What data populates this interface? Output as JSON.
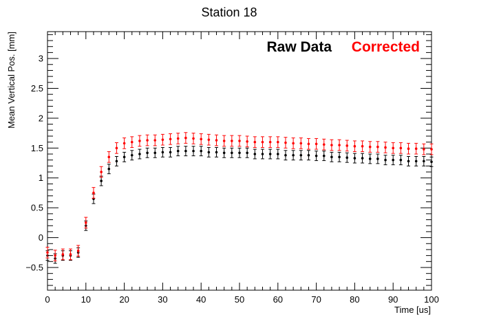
{
  "chart_data": {
    "type": "scatter",
    "title": "Station 18",
    "xlabel": "Time [us]",
    "ylabel": "Mean Vertical Pos. [mm]",
    "xlim": [
      0,
      100
    ],
    "ylim": [
      -0.88,
      3.45
    ],
    "x_ticks": [
      0,
      10,
      20,
      30,
      40,
      50,
      60,
      70,
      80,
      90,
      100
    ],
    "y_ticks": [
      -0.5,
      0,
      0.5,
      1,
      1.5,
      2,
      2.5,
      3
    ],
    "y_tick_labels": [
      "−0.5",
      "0",
      "0.5",
      "1",
      "1.5",
      "2",
      "2.5",
      "3"
    ],
    "grid": false,
    "legend_placement": "top-right",
    "error_bars": true,
    "series": [
      {
        "name": "Raw Data",
        "color": "#000000",
        "x": [
          0,
          2,
          4,
          6,
          8,
          10,
          12,
          14,
          16,
          18,
          20,
          22,
          24,
          26,
          28,
          30,
          32,
          34,
          36,
          38,
          40,
          42,
          44,
          46,
          48,
          50,
          52,
          54,
          56,
          58,
          60,
          62,
          64,
          66,
          68,
          70,
          72,
          74,
          76,
          78,
          80,
          82,
          84,
          86,
          88,
          90,
          92,
          94,
          96,
          98,
          100
        ],
        "y": [
          -0.3,
          -0.35,
          -0.3,
          -0.3,
          -0.25,
          0.2,
          0.65,
          0.95,
          1.15,
          1.28,
          1.35,
          1.38,
          1.4,
          1.42,
          1.42,
          1.43,
          1.43,
          1.45,
          1.45,
          1.45,
          1.45,
          1.43,
          1.43,
          1.42,
          1.42,
          1.42,
          1.42,
          1.4,
          1.4,
          1.4,
          1.4,
          1.38,
          1.38,
          1.38,
          1.38,
          1.37,
          1.37,
          1.35,
          1.35,
          1.34,
          1.33,
          1.33,
          1.32,
          1.32,
          1.3,
          1.3,
          1.3,
          1.28,
          1.28,
          1.28,
          1.27
        ],
        "y_err": 0.08
      },
      {
        "name": "Corrected",
        "color": "#ff0000",
        "x": [
          0,
          2,
          4,
          6,
          8,
          10,
          12,
          14,
          16,
          18,
          20,
          22,
          24,
          26,
          28,
          30,
          32,
          34,
          36,
          38,
          40,
          42,
          44,
          46,
          48,
          50,
          52,
          54,
          56,
          58,
          60,
          62,
          64,
          66,
          68,
          70,
          72,
          74,
          76,
          78,
          80,
          82,
          84,
          86,
          88,
          90,
          92,
          94,
          96,
          98,
          100
        ],
        "y": [
          -0.25,
          -0.3,
          -0.28,
          -0.28,
          -0.22,
          0.25,
          0.75,
          1.1,
          1.35,
          1.5,
          1.58,
          1.6,
          1.62,
          1.63,
          1.63,
          1.64,
          1.65,
          1.66,
          1.67,
          1.66,
          1.65,
          1.64,
          1.63,
          1.62,
          1.62,
          1.62,
          1.61,
          1.6,
          1.6,
          1.6,
          1.6,
          1.59,
          1.58,
          1.58,
          1.57,
          1.57,
          1.56,
          1.55,
          1.55,
          1.54,
          1.53,
          1.53,
          1.52,
          1.52,
          1.51,
          1.5,
          1.5,
          1.49,
          1.49,
          1.48,
          1.48
        ],
        "y_err": 0.09
      }
    ]
  }
}
